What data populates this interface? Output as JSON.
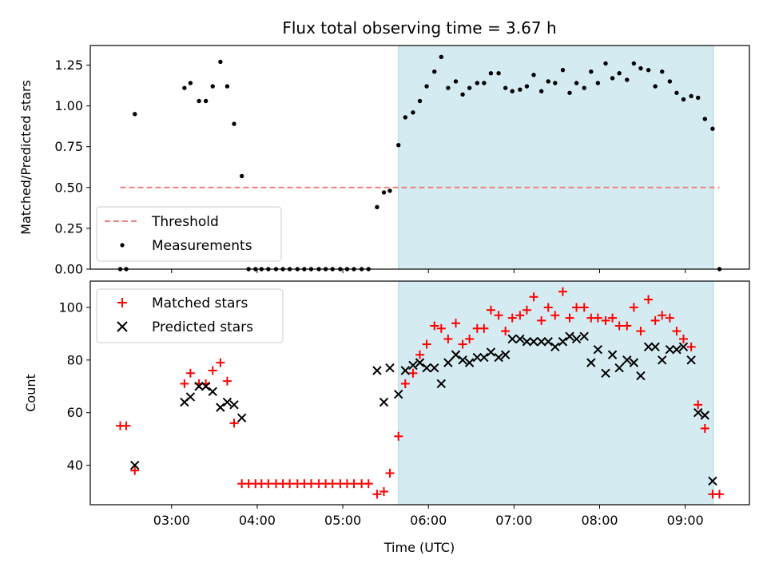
{
  "chart_data": [
    {
      "type": "scatter",
      "title": "Flux total observing time = 3.67 h",
      "ylabel": "Matched/Predicted stars",
      "xlabel": "",
      "xlim_hours": [
        2.05,
        9.75
      ],
      "ylim": [
        0,
        1.37
      ],
      "yticks": [
        "0.00",
        "0.25",
        "0.50",
        "0.75",
        "1.00",
        "1.25"
      ],
      "ytick_values": [
        0,
        0.25,
        0.5,
        0.75,
        1.0,
        1.25
      ],
      "shaded_span_hours": [
        5.65,
        9.33
      ],
      "shade_color": "#d4ebf1",
      "legend_position": "lower-left",
      "grid": false,
      "threshold": {
        "name": "Threshold",
        "value": 0.5,
        "x_range_hours": [
          2.4,
          9.4
        ],
        "color": "#f08080"
      },
      "series": [
        {
          "name": "Measurements",
          "marker": "dot",
          "color": "#000000",
          "x": [
            2.4,
            2.47,
            2.57,
            3.15,
            3.22,
            3.32,
            3.4,
            3.48,
            3.57,
            3.65,
            3.73,
            3.82,
            3.9,
            3.98,
            4.05,
            4.13,
            4.22,
            4.3,
            4.38,
            4.47,
            4.55,
            4.63,
            4.72,
            4.8,
            4.88,
            4.97,
            5.05,
            5.13,
            5.22,
            5.3,
            5.4,
            5.48,
            5.55,
            5.65,
            5.73,
            5.82,
            5.9,
            5.98,
            6.07,
            6.15,
            6.23,
            6.32,
            6.4,
            6.48,
            6.57,
            6.65,
            6.73,
            6.82,
            6.9,
            6.98,
            7.07,
            7.15,
            7.23,
            7.32,
            7.4,
            7.48,
            7.57,
            7.65,
            7.73,
            7.82,
            7.9,
            7.98,
            8.07,
            8.15,
            8.23,
            8.32,
            8.4,
            8.48,
            8.57,
            8.65,
            8.73,
            8.82,
            8.9,
            8.98,
            9.07,
            9.15,
            9.23,
            9.32,
            9.4
          ],
          "y": [
            0.0,
            0.0,
            0.95,
            1.11,
            1.14,
            1.03,
            1.03,
            1.12,
            1.27,
            1.12,
            0.89,
            0.57,
            0.0,
            0.0,
            0.0,
            0.0,
            0.0,
            0.0,
            0.0,
            0.0,
            0.0,
            0.0,
            0.0,
            0.0,
            0.0,
            0.0,
            0.0,
            0.0,
            0.0,
            0.0,
            0.38,
            0.47,
            0.48,
            0.76,
            0.93,
            0.96,
            1.03,
            1.12,
            1.21,
            1.3,
            1.11,
            1.15,
            1.07,
            1.11,
            1.14,
            1.14,
            1.2,
            1.2,
            1.11,
            1.09,
            1.1,
            1.12,
            1.19,
            1.09,
            1.15,
            1.14,
            1.22,
            1.08,
            1.14,
            1.11,
            1.21,
            1.14,
            1.26,
            1.17,
            1.2,
            1.16,
            1.26,
            1.23,
            1.22,
            1.12,
            1.21,
            1.15,
            1.08,
            1.04,
            1.06,
            1.05,
            0.92,
            0.86,
            0.0
          ]
        }
      ]
    },
    {
      "type": "scatter",
      "title": "",
      "ylabel": "Count",
      "xlabel": "Time (UTC)",
      "xlim_hours": [
        2.05,
        9.75
      ],
      "ylim": [
        25,
        110
      ],
      "yticks": [
        "40",
        "60",
        "80",
        "100"
      ],
      "ytick_values": [
        40,
        60,
        80,
        100
      ],
      "xticks": [
        "03:00",
        "04:00",
        "05:00",
        "06:00",
        "07:00",
        "08:00",
        "09:00"
      ],
      "xtick_hours": [
        3,
        4,
        5,
        6,
        7,
        8,
        9
      ],
      "shaded_span_hours": [
        5.65,
        9.33
      ],
      "shade_color": "#d4ebf1",
      "legend_position": "upper-left",
      "grid": false,
      "series": [
        {
          "name": "Matched stars",
          "marker": "plus",
          "color": "#ff0000",
          "x": [
            2.4,
            2.47,
            2.57,
            3.15,
            3.22,
            3.32,
            3.4,
            3.48,
            3.57,
            3.65,
            3.73,
            3.82,
            3.9,
            3.98,
            4.05,
            4.13,
            4.22,
            4.3,
            4.38,
            4.47,
            4.55,
            4.63,
            4.72,
            4.8,
            4.88,
            4.97,
            5.05,
            5.13,
            5.22,
            5.3,
            5.4,
            5.48,
            5.55,
            5.65,
            5.73,
            5.82,
            5.9,
            5.98,
            6.07,
            6.15,
            6.23,
            6.32,
            6.4,
            6.48,
            6.57,
            6.65,
            6.73,
            6.82,
            6.9,
            6.98,
            7.07,
            7.15,
            7.23,
            7.32,
            7.4,
            7.48,
            7.57,
            7.65,
            7.73,
            7.82,
            7.9,
            7.98,
            8.07,
            8.15,
            8.23,
            8.32,
            8.4,
            8.48,
            8.57,
            8.65,
            8.73,
            8.82,
            8.9,
            8.98,
            9.07,
            9.15,
            9.23,
            9.32,
            9.4
          ],
          "y": [
            55,
            55,
            38,
            71,
            75,
            71,
            71,
            76,
            79,
            72,
            56,
            33,
            33,
            33,
            33,
            33,
            33,
            33,
            33,
            33,
            33,
            33,
            33,
            33,
            33,
            33,
            33,
            33,
            33,
            33,
            29,
            30,
            37,
            51,
            71,
            75,
            82,
            86,
            93,
            92,
            88,
            94,
            86,
            88,
            92,
            92,
            99,
            97,
            91,
            96,
            97,
            99,
            104,
            95,
            100,
            97,
            106,
            96,
            100,
            100,
            96,
            96,
            95,
            96,
            93,
            93,
            100,
            91,
            103,
            95,
            97,
            96,
            91,
            88,
            85,
            63,
            54,
            29,
            29
          ]
        },
        {
          "name": "Predicted stars",
          "marker": "x",
          "color": "#000000",
          "x": [
            2.57,
            3.15,
            3.22,
            3.32,
            3.4,
            3.48,
            3.57,
            3.65,
            3.73,
            3.82,
            5.4,
            5.48,
            5.55,
            5.65,
            5.73,
            5.82,
            5.9,
            5.98,
            6.07,
            6.15,
            6.23,
            6.32,
            6.4,
            6.48,
            6.57,
            6.65,
            6.73,
            6.82,
            6.9,
            6.98,
            7.07,
            7.15,
            7.23,
            7.32,
            7.4,
            7.48,
            7.57,
            7.65,
            7.73,
            7.82,
            7.9,
            7.98,
            8.07,
            8.15,
            8.23,
            8.32,
            8.4,
            8.48,
            8.57,
            8.65,
            8.73,
            8.82,
            8.9,
            8.98,
            9.07,
            9.15,
            9.23,
            9.32
          ],
          "y": [
            40,
            64,
            66,
            70,
            70,
            68,
            62,
            64,
            63,
            58,
            76,
            64,
            77,
            67,
            76,
            78,
            79,
            77,
            77,
            71,
            79,
            82,
            80,
            79,
            81,
            81,
            83,
            81,
            82,
            88,
            88,
            87,
            87,
            87,
            87,
            85,
            87,
            89,
            88,
            89,
            79,
            84,
            75,
            82,
            77,
            80,
            79,
            74,
            85,
            85,
            80,
            84,
            84,
            85,
            80,
            60,
            59,
            34
          ]
        }
      ]
    }
  ]
}
